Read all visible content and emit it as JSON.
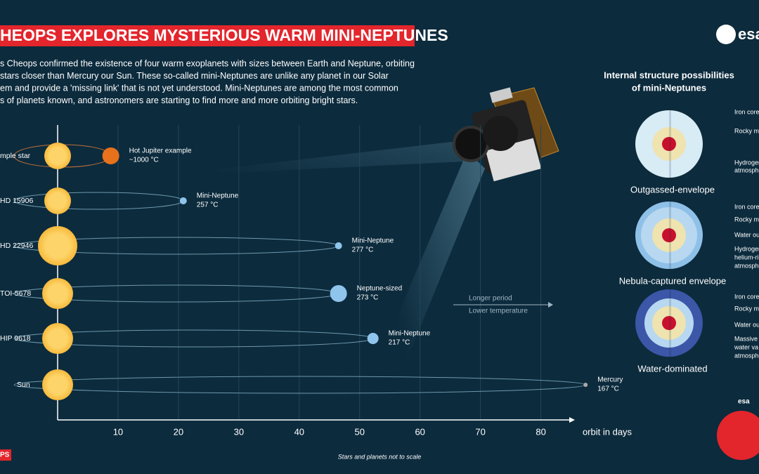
{
  "header": {
    "title": "HEOPS EXPLORES MYSTERIOUS WARM MINI-NEPTUNES",
    "logo": "esa",
    "intro": [
      "s Cheops confirmed the existence of four warm exoplanets with sizes between Earth and Neptune, orbiting",
      "stars closer than Mercury our Sun. These so-called mini-Neptunes are unlike any planet in our Solar",
      "em and provide a 'missing link' that is not yet understood. Mini-Neptunes are among the most common",
      "s of planets known, and astronomers are starting to find more and more orbiting bright stars."
    ]
  },
  "chart_data": {
    "type": "scatter",
    "x_label": "orbit in days",
    "xlim": [
      0,
      84.7
    ],
    "xticks": [
      10,
      20,
      30,
      40,
      50,
      60,
      70,
      80
    ],
    "grid": true,
    "stars": [
      "mple star",
      "HD 15906",
      "HD 22946",
      "TOI-5678",
      "HIP 9618",
      "Sun"
    ],
    "planets": [
      "Hot Jupiter example",
      "Mini-Neptune",
      "Mini-Neptune",
      "Neptune-sized",
      "Mini-Neptune",
      "Mercury"
    ],
    "temperatures": [
      "~1000 °C",
      "257 °C",
      "277 °C",
      "273 °C",
      "217 °C",
      "167 °C"
    ],
    "x": [
      8.8,
      20.8,
      46.5,
      46.5,
      52.2,
      87.4
    ],
    "colors": [
      "#e8711c",
      "#8fc4ec",
      "#8fc4ec",
      "#8fc4ec",
      "#8fc4ec",
      "#a9a9a9"
    ],
    "annotation": [
      "Longer period",
      "Lower temperature"
    ],
    "note": "Stars and planets not to scale"
  },
  "structure": {
    "title": [
      "Internal structure possibilities",
      "of mini-Neptunes"
    ],
    "models": [
      {
        "name": "Outgassed-envelope",
        "layers": [
          "Iron core",
          "Rocky ma",
          "Hydrogen",
          "atmosphe"
        ]
      },
      {
        "name": "Nebula-captured envelope",
        "layers": [
          "Iron core",
          "Rocky ma",
          "Water ou",
          "Hydrogen",
          "helium-ri",
          "atmosphe"
        ]
      },
      {
        "name": "Water-dominated",
        "layers": [
          "Iron core",
          "Rocky ma",
          "Water ou",
          "Massive",
          "water va",
          "atmosphe"
        ]
      }
    ]
  },
  "footer": {
    "mission": "PS",
    "badge": "esa"
  }
}
